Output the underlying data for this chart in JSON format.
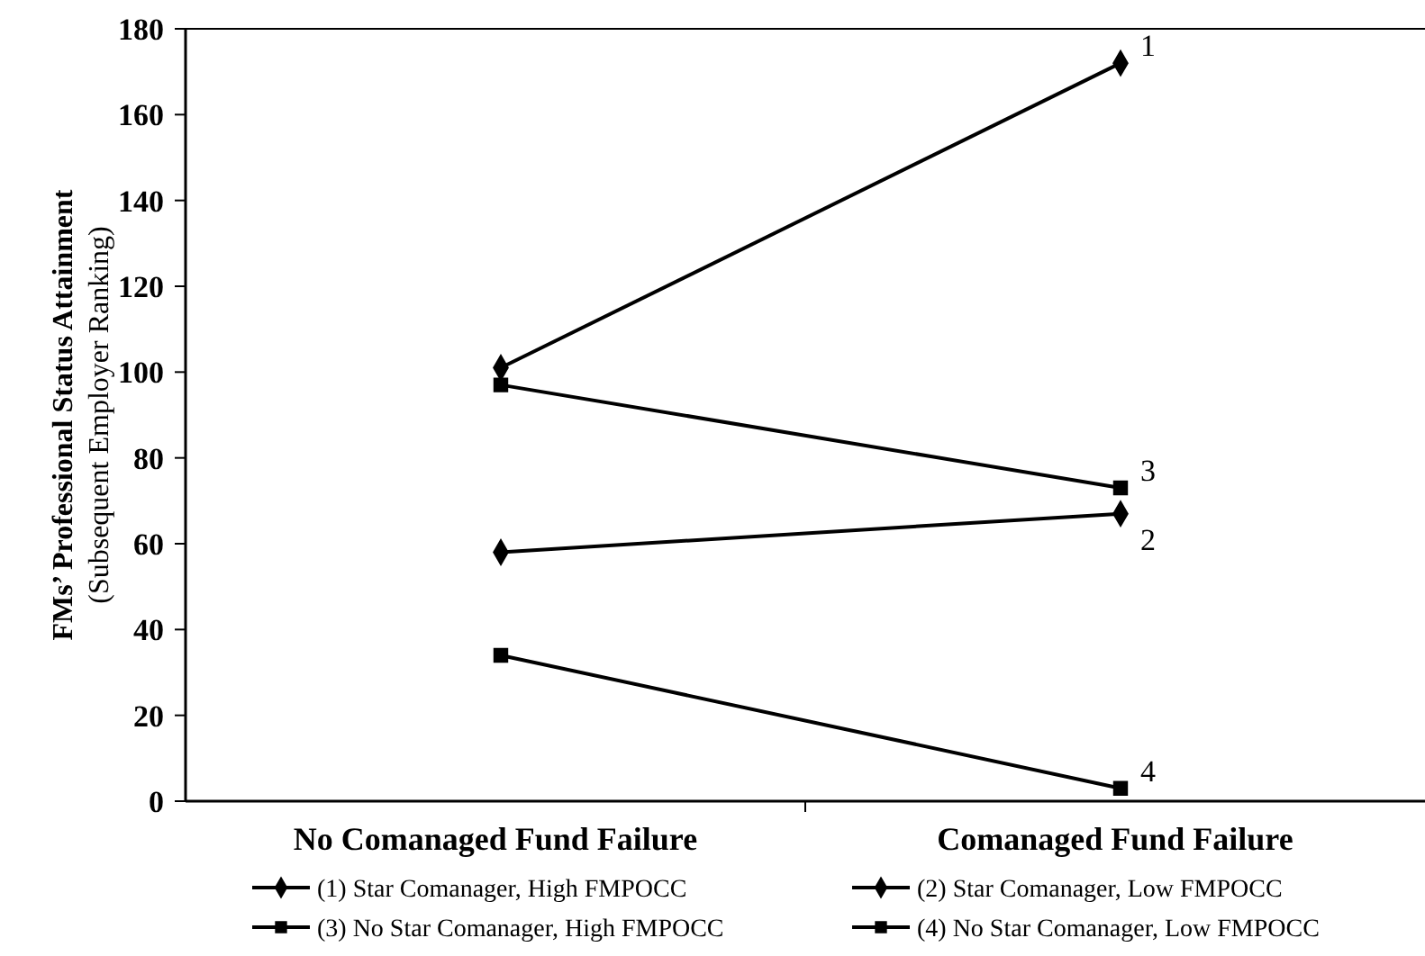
{
  "chart_data": {
    "type": "line",
    "ylabel": "FMs’ Professional Status Attainment\n(Subsequent Employer Ranking)",
    "categories": [
      "No Comanaged Fund Failure",
      "Comanaged Fund Failure"
    ],
    "series": [
      {
        "name": "(1) Star Comanager, High FMPOCC",
        "color": "#000000",
        "marker": "diamond",
        "values": [
          101,
          172
        ]
      },
      {
        "name": "(2) Star Comanager, Low FMPOCC",
        "color": "#000000",
        "marker": "diamond",
        "values": [
          58,
          67
        ]
      },
      {
        "name": "(3) No Star Comanager, High FMPOCC",
        "color": "#000000",
        "marker": "square",
        "values": [
          97,
          73
        ]
      },
      {
        "name": "(4) No Star Comanager, Low FMPOCC",
        "color": "#000000",
        "marker": "square",
        "values": [
          34,
          3
        ]
      }
    ],
    "ylim": [
      0,
      180
    ],
    "yticks": [
      0,
      20,
      40,
      60,
      80,
      100,
      120,
      140,
      160,
      180
    ],
    "legend": "bottom",
    "line_style": "solid",
    "annotations": [
      {
        "text": "1",
        "x": "Comanaged Fund Failure",
        "y": 172
      },
      {
        "text": "3",
        "x": "Comanaged Fund Failure",
        "y": 73
      },
      {
        "text": "2",
        "x": "Comanaged Fund Failure",
        "y": 67
      },
      {
        "text": "4",
        "x": "Comanaged Fund Failure",
        "y": 3
      }
    ]
  }
}
